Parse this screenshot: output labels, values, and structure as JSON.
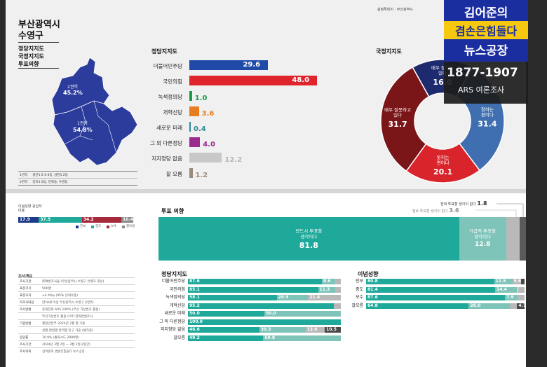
{
  "header": {
    "publisher": "충청투데이 · 부산광역시",
    "region_title_1": "부산광역시",
    "region_title_2": "수영구"
  },
  "menu": [
    "정당지지도",
    "국정지지도",
    "투표의향"
  ],
  "map": {
    "districts": [
      {
        "name": "2권역",
        "pct": "45.2%"
      },
      {
        "name": "1권역",
        "pct": "54.8%"
      }
    ],
    "legend": [
      {
        "name": "1권역",
        "desc": "광안1·2·3·4동, 남천1·2동"
      },
      {
        "name": "2권역",
        "desc": "망미1·2동, 민락동, 수영동"
      }
    ]
  },
  "party_support": {
    "title": "정당지지도",
    "chart_data": {
      "type": "bar",
      "categories": [
        "더불어민주당",
        "국민의힘",
        "녹색정의당",
        "개혁신당",
        "새로운 미래",
        "그 외 다른정당",
        "지지정당 없음",
        "잘 모름"
      ],
      "values": [
        29.6,
        48.0,
        1.0,
        3.6,
        0.4,
        4.0,
        12.2,
        1.2
      ],
      "value_labels": [
        "29.6",
        "48.0",
        "1.0",
        "3.6",
        "0.4",
        "4.0",
        "12.2",
        "1.2"
      ],
      "colors": [
        "#1f4aa8",
        "#e0242c",
        "#1a9b4b",
        "#e87e22",
        "#2a8a9b",
        "#9b2a8e",
        "#c8c8c8",
        "#9b8c7a"
      ],
      "xlim": [
        0,
        50
      ]
    }
  },
  "approval": {
    "title": "국정지지도",
    "chart_data": {
      "type": "pie",
      "categories": [
        "매우 잘하고 있다",
        "잘하는 편이다",
        "못하는 편이다",
        "매우 잘못하고 있다"
      ],
      "values": [
        16.0,
        31.4,
        20.1,
        31.7
      ],
      "value_labels": [
        "16.0",
        "31.4",
        "20.1",
        "31.7"
      ],
      "colors": [
        "#1e2a6e",
        "#3f6fb0",
        "#d9242b",
        "#7a1518"
      ]
    }
  },
  "logo": {
    "line1": "김어준의",
    "line2": "겸손은힘들다",
    "line3": "뉴스공장",
    "phone": "1877-1907",
    "ars": "ARS 여론조사"
  },
  "ideology": {
    "title": "이념성향 응답자 비율",
    "chart_data": {
      "type": "bar",
      "categories": [
        "진보",
        "중도",
        "보수",
        "잘모름"
      ],
      "values": [
        17.9,
        37.5,
        34.2,
        10.4
      ],
      "value_labels": [
        "17.9",
        "37.5",
        "34.2",
        "10.4"
      ],
      "colors": [
        "#1e3a8a",
        "#1fa99a",
        "#a42a3c",
        "#8a8a8a"
      ]
    }
  },
  "survey_overview": {
    "title": "조사개요",
    "rows": [
      {
        "k": "조사기관",
        "v": "㈜여론조사꽃 (부산광역시 수영구 유권자 대상)"
      },
      {
        "k": "표본크기",
        "v": "500명"
      },
      {
        "k": "표본오차",
        "v": "±4.4%p (95% 신뢰수준)"
      },
      {
        "k": "피조사대상",
        "v": "만18세 이상 부산광역시 수영구 유권자"
      },
      {
        "k": "조사방법",
        "v": "휴대전화 ARS 100% (무선 가상번호 활용)"
      },
      {
        "k": "",
        "v": "무선가상번호 활용 CATI 전화면접조사"
      },
      {
        "k": "가중방법",
        "v": "행정안전부 2024년 2월 말 기준"
      },
      {
        "k": "",
        "v": "성별·연령별·권역별 인구 가중 (셀가중)"
      },
      {
        "k": "응답률",
        "v": "10.9% (통화시도 2899명)"
      },
      {
        "k": "조사기간",
        "v": "2024년 3월 2일 ~ 3월 3일(2일간)"
      },
      {
        "k": "조사의뢰",
        "v": "김어준의 겸손은힘들다 뉴스공장"
      }
    ]
  },
  "vote_intent": {
    "title": "투표 의향",
    "chart_data": {
      "type": "bar",
      "categories": [
        "반드시 투표할 생각이다",
        "가급적 투표할 생각이다",
        "별로 투표할 생각이 없다",
        "전혀 투표할 생각이 없다"
      ],
      "values": [
        81.8,
        12.8,
        3.6,
        1.8
      ],
      "value_labels": [
        "81.8",
        "12.8",
        "3.6",
        "1.8"
      ],
      "colors": [
        "#1fa99a",
        "#7fc4b9",
        "#b9b9b9",
        "#5a5a5a"
      ]
    }
  },
  "cross_party": {
    "title": "정당지지도",
    "chart_data": {
      "type": "bar",
      "categories": [
        "더불어민주당",
        "국민의힘",
        "녹색정의당",
        "개혁신당",
        "새로운 미래",
        "그 외 다른정당",
        "지지정당 없음",
        "잘모름"
      ],
      "series": [
        {
          "name": "반드시",
          "values": [
            87.6,
            85.1,
            58.1,
            95.2,
            50.0,
            100.0,
            46.6,
            49.2
          ],
          "labels": [
            "87.6",
            "85.1",
            "58.1",
            "95.2",
            "50.0",
            "100.0",
            "46.6",
            "49.2"
          ]
        },
        {
          "name": "가급적",
          "values": [
            8.6,
            11.3,
            20.5,
            0,
            50.0,
            0,
            30.3,
            50.8
          ],
          "labels": [
            "8.6",
            "11.3",
            "20.5",
            "",
            "50.0",
            "",
            "30.3",
            "50.8"
          ]
        },
        {
          "name": "별로",
          "values": [
            3.8,
            3.6,
            21.4,
            4.8,
            0,
            0,
            12.6,
            0
          ],
          "labels": [
            "",
            "",
            "21.4",
            "",
            "",
            "",
            "12.6",
            ""
          ]
        },
        {
          "name": "전혀",
          "values": [
            0,
            0,
            0,
            0,
            0,
            0,
            10.5,
            0
          ],
          "labels": [
            "",
            "",
            "",
            "",
            "",
            "",
            "10.5",
            ""
          ]
        }
      ],
      "colors": [
        "#1fa99a",
        "#7fc4b9",
        "#b9b9b9",
        "#4a4a4a"
      ]
    }
  },
  "cross_ideology": {
    "title": "이념성향",
    "chart_data": {
      "type": "bar",
      "categories": [
        "진보",
        "중도",
        "보수",
        "잘모름"
      ],
      "series": [
        {
          "name": "반드시",
          "values": [
            80.8,
            81.4,
            87.6,
            64.8
          ],
          "labels": [
            "80.8",
            "81.4",
            "87.6",
            "64.8"
          ]
        },
        {
          "name": "가급적",
          "values": [
            11.5,
            14.4,
            7.9,
            26.0
          ],
          "labels": [
            "11.5",
            "14.4",
            "7.9",
            "26.0"
          ]
        },
        {
          "name": "별로",
          "values": [
            5.6,
            4.2,
            4.5,
            4.5
          ],
          "labels": [
            "5.6",
            "",
            "",
            ""
          ]
        },
        {
          "name": "전혀",
          "values": [
            2.1,
            0,
            0,
            4.7
          ],
          "labels": [
            "",
            "",
            "",
            "4.7"
          ]
        }
      ],
      "colors": [
        "#1fa99a",
        "#7fc4b9",
        "#b9b9b9",
        "#4a4a4a"
      ]
    }
  }
}
